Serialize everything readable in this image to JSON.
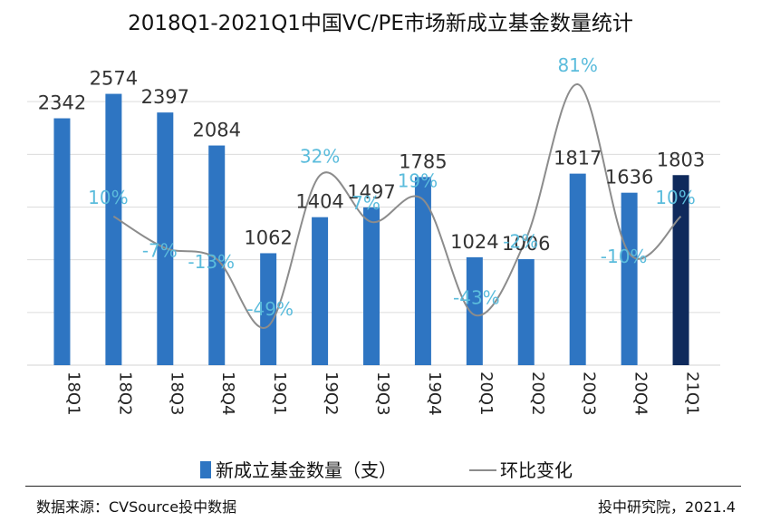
{
  "chart_data": {
    "type": "bar",
    "title": "2018Q1-2021Q1中国VC/PE市场新成立基金数量统计",
    "categories": [
      "18Q1",
      "18Q2",
      "18Q3",
      "18Q4",
      "19Q1",
      "19Q2",
      "19Q3",
      "19Q4",
      "20Q1",
      "20Q2",
      "20Q3",
      "20Q4",
      "21Q1"
    ],
    "series": [
      {
        "name": "新成立基金数量（支）",
        "type": "bar",
        "values": [
          2342,
          2574,
          2397,
          2084,
          1062,
          1404,
          1497,
          1785,
          1024,
          1006,
          1817,
          1636,
          1803
        ],
        "value_labels": [
          "2342",
          "2574",
          "2397",
          "2084",
          "1062",
          "1404",
          "1497",
          "1785",
          "1024",
          "1006",
          "1817",
          "1636",
          "1803"
        ]
      },
      {
        "name": "环比变化",
        "type": "line",
        "values": [
          null,
          10,
          -7,
          -13,
          -49,
          32,
          7,
          19,
          -43,
          -2,
          81,
          -10,
          10
        ],
        "value_labels": [
          "",
          "10%",
          "-7%",
          "-13%",
          "-49%",
          "32%",
          "7%",
          "19%",
          "-43%",
          "-2%",
          "81%",
          "-10%",
          "10%"
        ]
      }
    ],
    "ylim": [
      0,
      3000
    ],
    "y2lim": [
      -70,
      100
    ],
    "legend_position": "bottom",
    "grid": true,
    "colors": {
      "bar": "#2e75c2",
      "bar_highlight": "#0f2a5c",
      "line": "#8c8c8c",
      "pct_label": "#5bbcdc",
      "value_label": "#333333",
      "grid": "#dcdcdc"
    }
  },
  "footer": {
    "source": "数据来源：CVSource投中数据",
    "credit": "投中研究院，2021.4"
  }
}
